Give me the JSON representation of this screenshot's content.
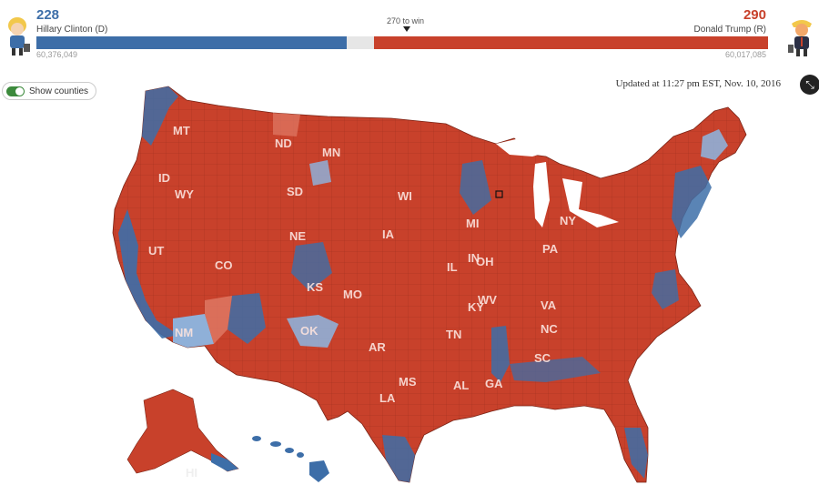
{
  "header": {
    "dem": {
      "votes": "228",
      "name": "Hillary Clinton (D)",
      "popular": "60,376,049",
      "color": "#3d6ea8"
    },
    "rep": {
      "votes": "290",
      "name": "Donald Trump (R)",
      "popular": "60,017,085",
      "color": "#c8412b"
    },
    "win_label": "270 to win",
    "electoral_votes": {
      "dem": 228,
      "undecided": 20,
      "rep": 290,
      "total": 538
    }
  },
  "controls": {
    "toggle_label": "Show counties",
    "toggle_on": true,
    "updated": "Updated at 11:27 pm EST, Nov. 10, 2016",
    "collapse_icon": "collapse-arrows-icon"
  },
  "map": {
    "state_labels": {
      "MT": "MT",
      "ND": "ND",
      "MN": "MN",
      "ID": "ID",
      "WY": "WY",
      "SD": "SD",
      "WI": "WI",
      "MI": "MI",
      "NY": "NY",
      "NE": "NE",
      "IA": "IA",
      "UT": "UT",
      "CO": "CO",
      "IL": "IL",
      "IN": "IN",
      "OH": "OH",
      "PA": "PA",
      "KS": "KS",
      "MO": "MO",
      "WV": "WV",
      "VA": "VA",
      "KY": "KY",
      "NM": "NM",
      "OK": "OK",
      "AR": "AR",
      "TN": "TN",
      "NC": "NC",
      "SC": "SC",
      "MS": "MS",
      "AL": "AL",
      "GA": "GA",
      "LA": "LA",
      "HI": "HI"
    },
    "colors": {
      "rep": "#c8412b",
      "rep_light": "#e07b67",
      "dem": "#3d6ea8",
      "dem_light": "#8fb0d8"
    }
  }
}
